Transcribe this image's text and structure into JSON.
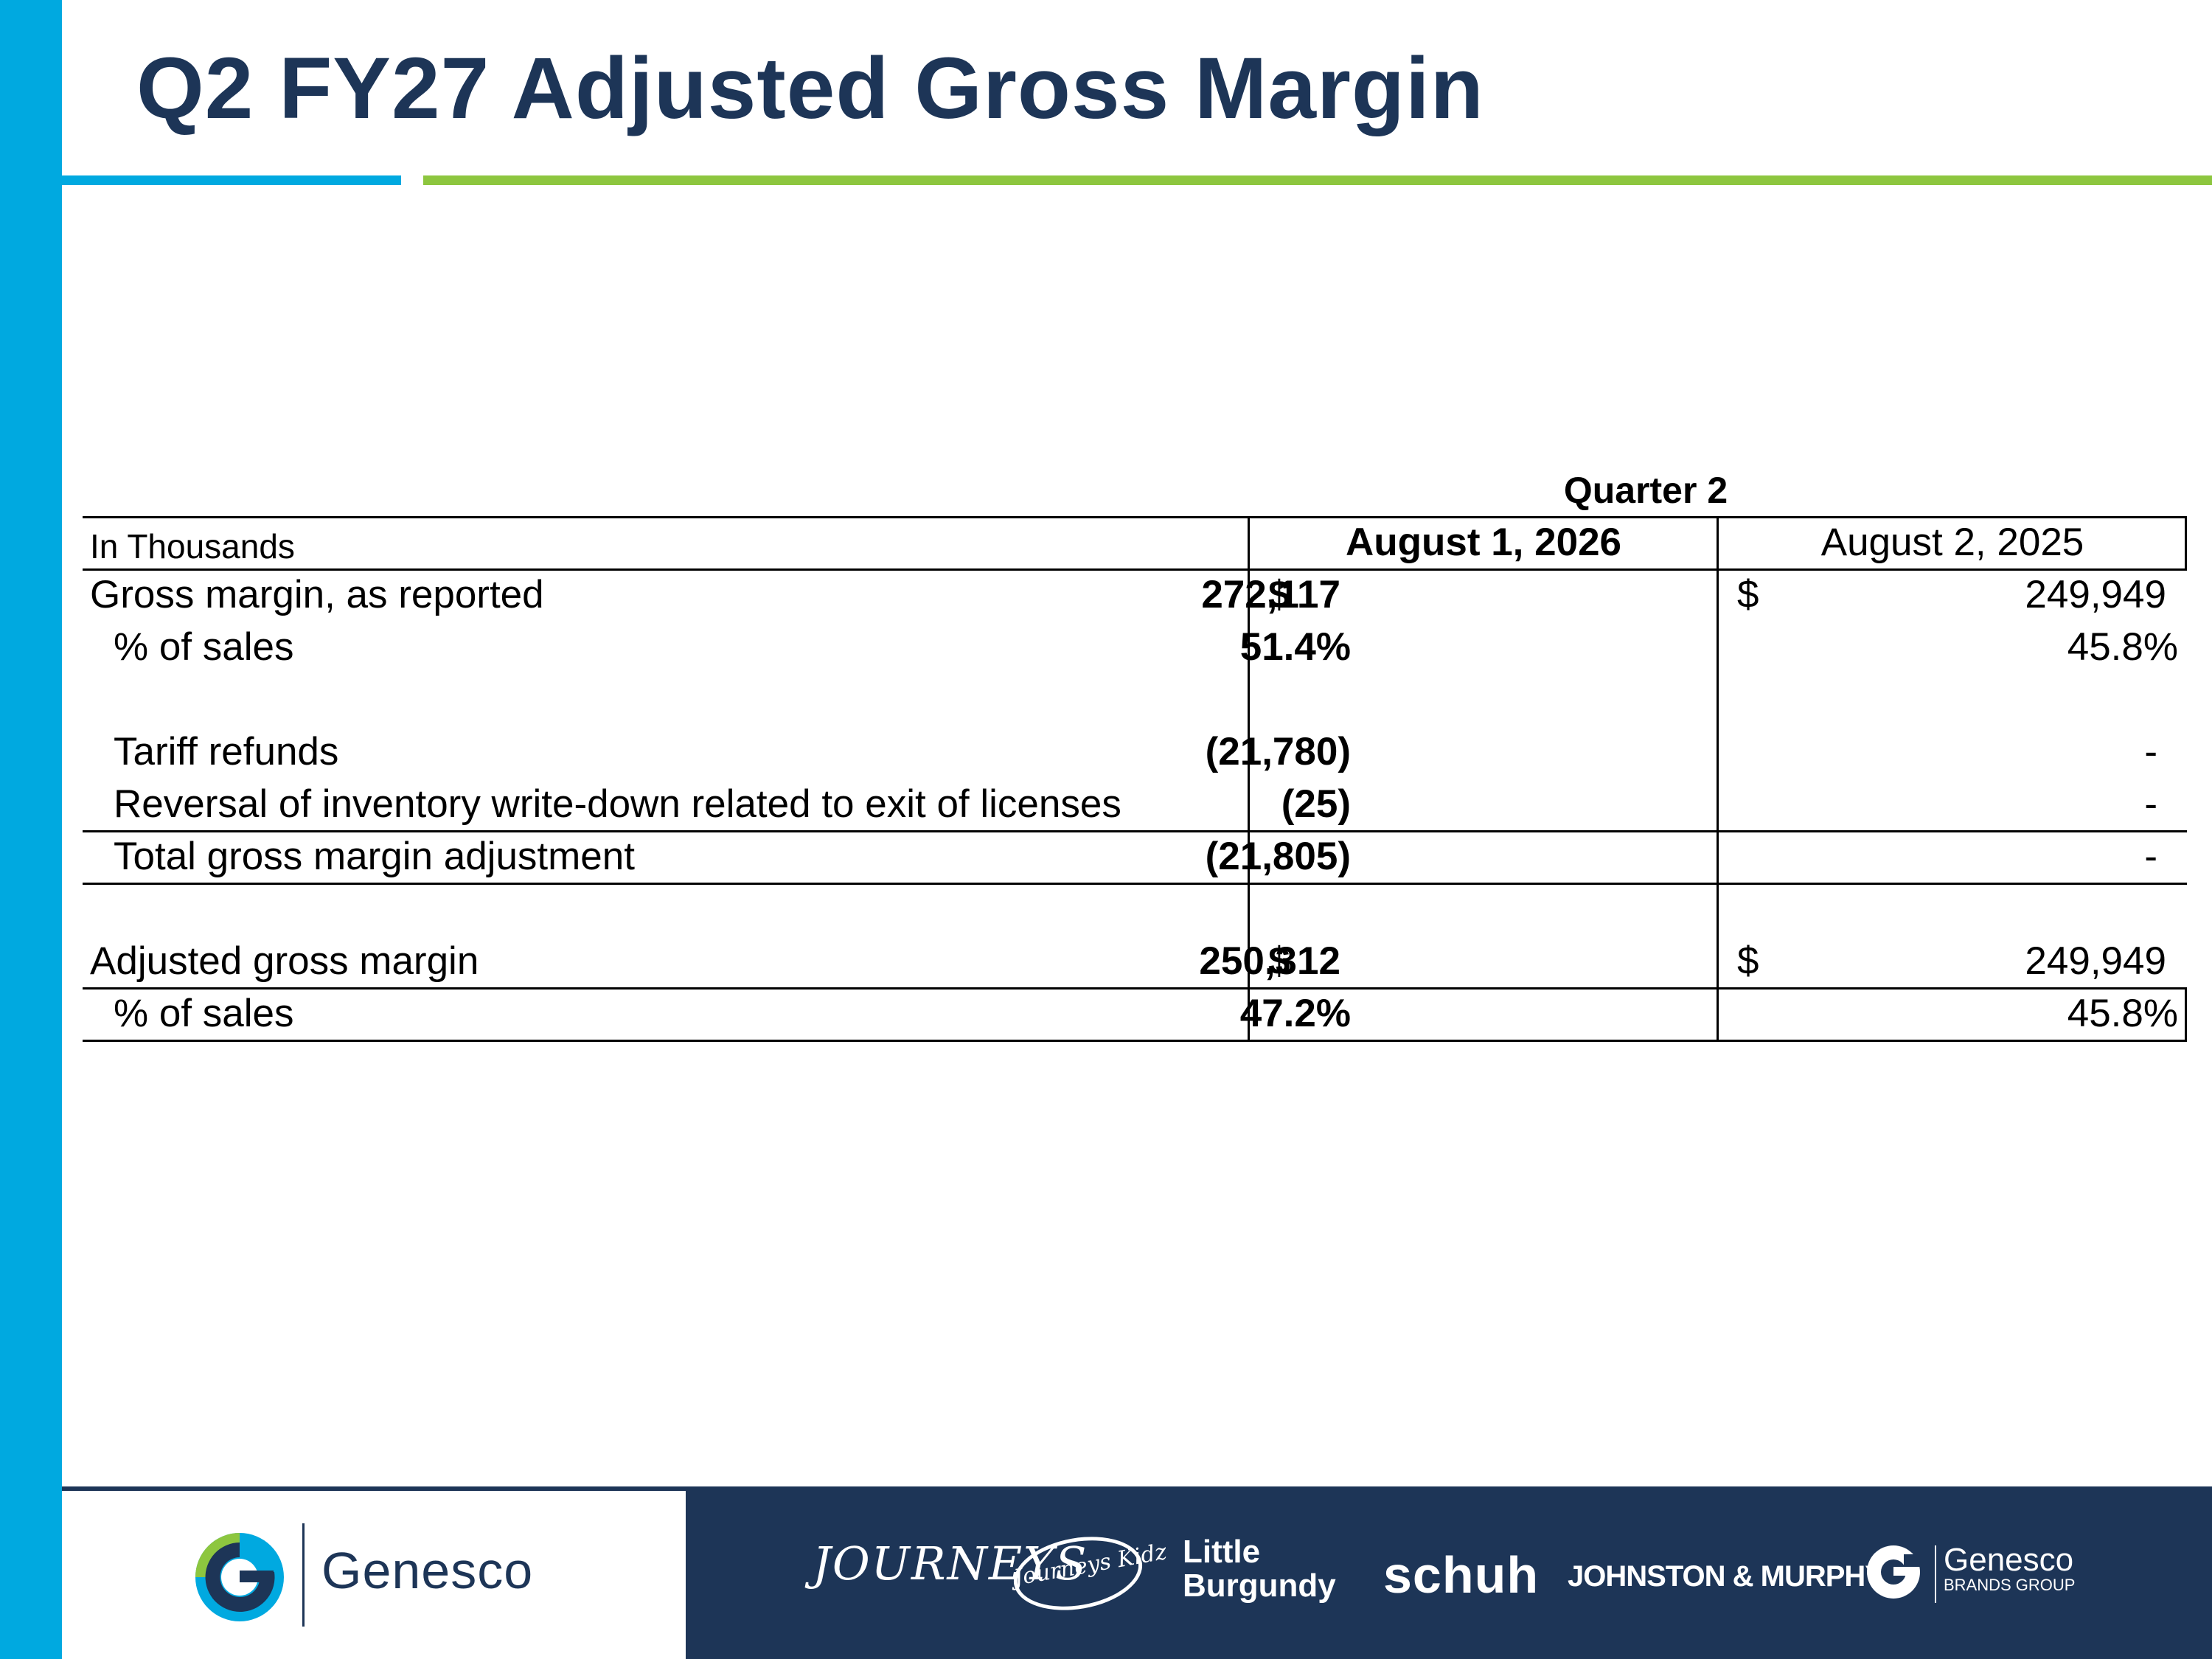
{
  "title": "Q2 FY27 Adjusted Gross Margin",
  "table": {
    "group_header": "Quarter 2",
    "unit_label": "In Thousands",
    "col1_header": "August 1, 2026",
    "col2_header": "August 2, 2025",
    "rows": [
      {
        "label": "Gross margin, as reported",
        "dol1": "$",
        "v1": "272,117",
        "dol2": "$",
        "v2": "249,949"
      },
      {
        "label": "% of sales",
        "v1": "51.4%",
        "v2": "45.8%"
      },
      {
        "label": "Tariff refunds",
        "v1": "(21,780)",
        "v2": "-"
      },
      {
        "label": "Reversal of inventory write-down related to exit of licenses",
        "v1": "(25)",
        "v2": "-"
      },
      {
        "label": "Total gross margin adjustment",
        "v1": "(21,805)",
        "v2": "-"
      },
      {
        "label": "Adjusted gross margin",
        "dol1": "$",
        "v1": "250,312",
        "dol2": "$",
        "v2": "249,949"
      },
      {
        "label": "% of sales",
        "v1": "47.2%",
        "v2": "45.8%"
      }
    ]
  },
  "footer": {
    "company": "Genesco",
    "brands": {
      "journeys": "JOURNEYS",
      "journeys_kidz": "Journeys Kidz",
      "little_burgundy_line1": "Little",
      "little_burgundy_line2": "Burgundy",
      "schuh": "schuh",
      "johnston_murphy": "JOHNSTON & MURPHY.",
      "gbg_name": "Genesco",
      "gbg_sub": "BRANDS GROUP"
    }
  },
  "colors": {
    "accent_blue": "#00a9e0",
    "accent_green": "#8dc63f",
    "navy": "#1d3557"
  }
}
